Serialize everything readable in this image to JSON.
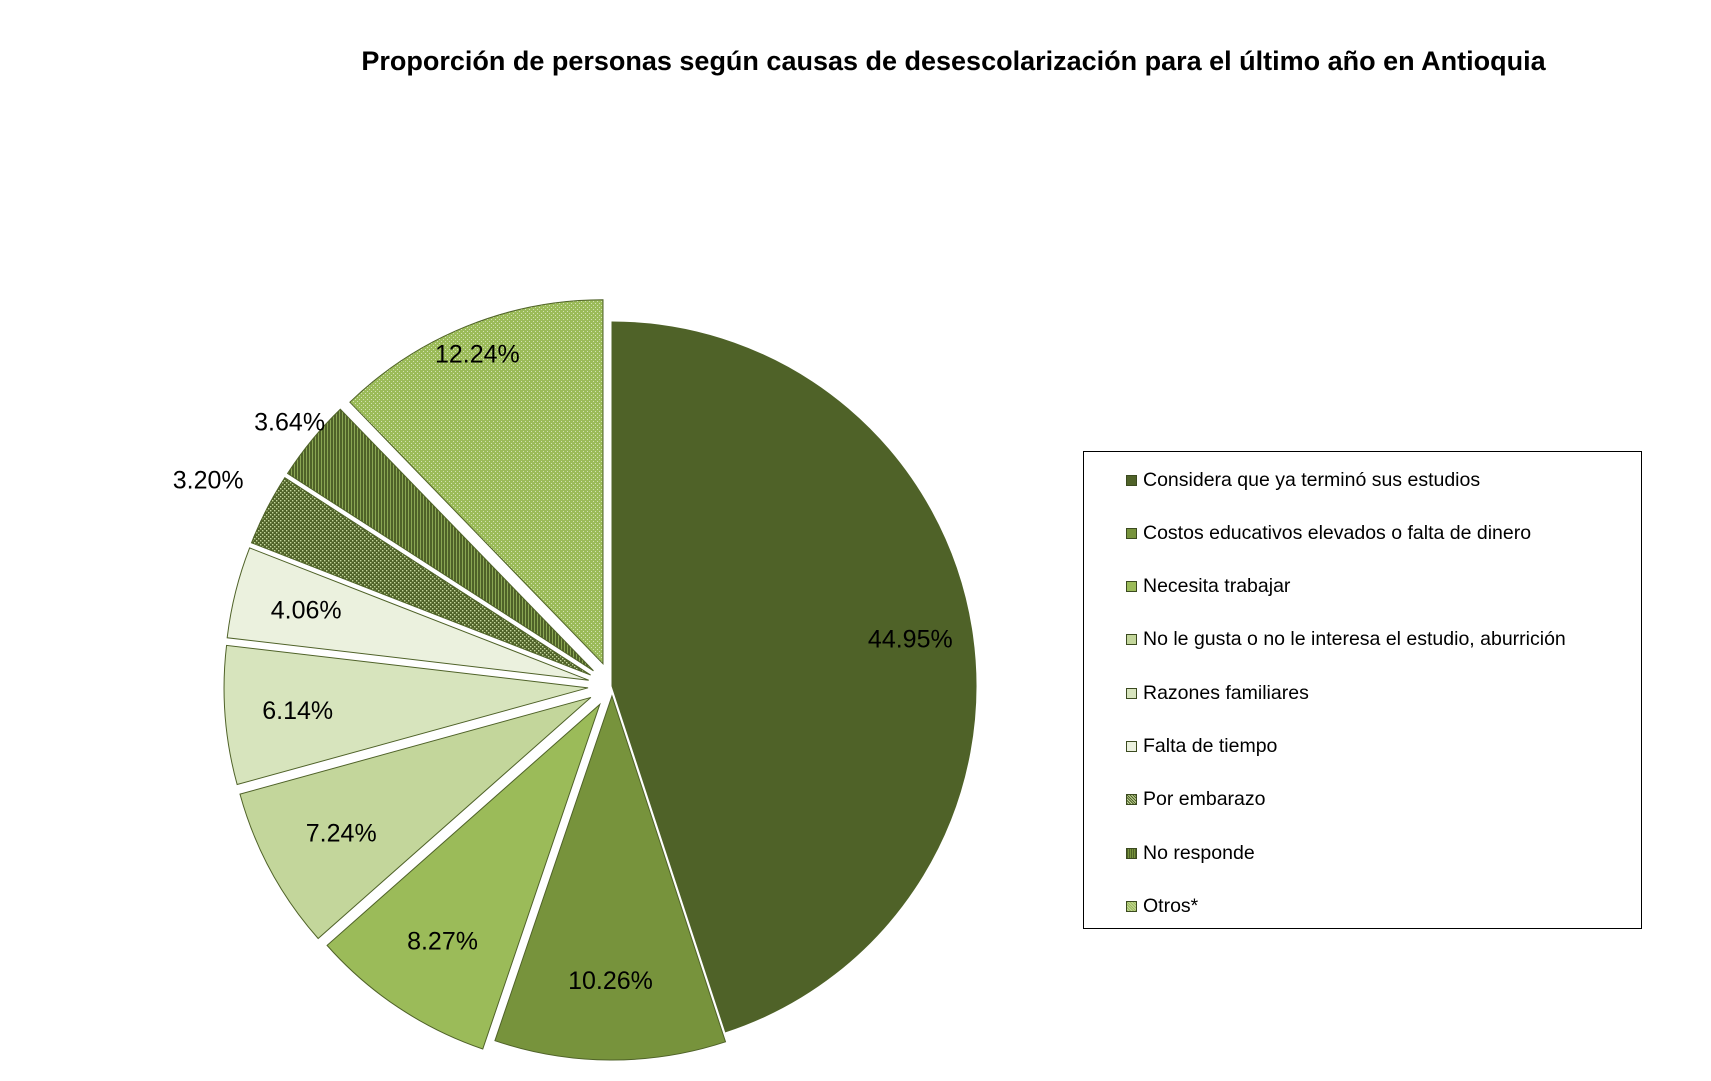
{
  "chart_data": {
    "type": "pie",
    "title": "Proporción de personas según causas de desescolarización para el último año en Antioquia",
    "slices": [
      {
        "label": "Considera que ya terminó sus estudios",
        "value": 44.95,
        "display": "44.95%",
        "color": "#4f6228",
        "pattern": "solid"
      },
      {
        "label": "Costos educativos elevados o falta de dinero",
        "value": 10.26,
        "display": "10.26%",
        "color": "#77933c",
        "pattern": "solid"
      },
      {
        "label": "Necesita trabajar",
        "value": 8.27,
        "display": "8.27%",
        "color": "#9bbb59",
        "pattern": "solid"
      },
      {
        "label": "No le gusta o no le interesa el estudio, aburrición",
        "value": 7.24,
        "display": "7.24%",
        "color": "#c3d69b",
        "pattern": "solid"
      },
      {
        "label": "Razones familiares",
        "value": 6.14,
        "display": "6.14%",
        "color": "#d7e4bd",
        "pattern": "solid"
      },
      {
        "label": "Falta de tiempo",
        "value": 4.06,
        "display": "4.06%",
        "color": "#ebf1de",
        "pattern": "solid"
      },
      {
        "label": "Por embarazo",
        "value": 3.2,
        "display": "3.20%",
        "color": "#4f6228",
        "pattern": "dots"
      },
      {
        "label": "No responde",
        "value": 3.64,
        "display": "3.64%",
        "color": "#4f6228",
        "pattern": "vlines"
      },
      {
        "label": "Otros*",
        "value": 12.24,
        "display": "12.24%",
        "color": "#9bbb59",
        "pattern": "fine-dots"
      }
    ],
    "legend_position": "right"
  }
}
